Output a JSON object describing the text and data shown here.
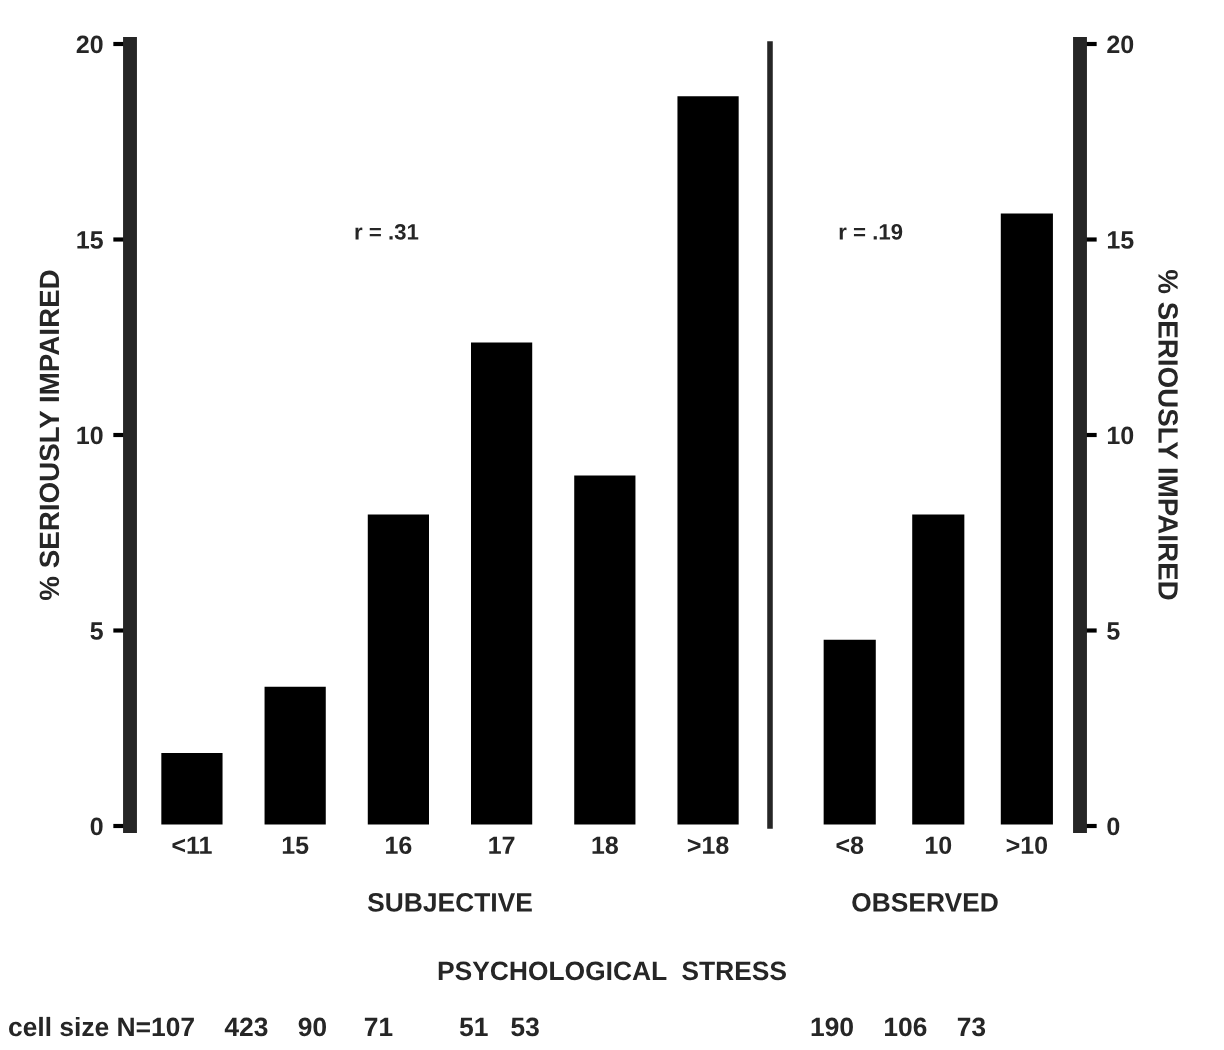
{
  "chart_data": [
    {
      "type": "bar",
      "categories": [
        "<11",
        "15",
        "16",
        "17",
        "18",
        ">18"
      ],
      "values": [
        1.9,
        3.6,
        8.0,
        12.4,
        9.0,
        18.7
      ],
      "color": "#000000",
      "xlabel": "SUBJECTIVE",
      "ylabel": "% SERIOUSLY IMPAIRED",
      "ylim": [
        0,
        20
      ],
      "yticks": [
        0,
        5,
        10,
        15,
        20
      ],
      "grid": false,
      "annotations": [
        "r = .31",
        "PSYCHOLOGICAL  STRESS",
        "cell size N=107    423    90     71         51   53"
      ]
    },
    {
      "type": "bar",
      "categories": [
        "<8",
        "10",
        ">10"
      ],
      "series": [
        {
          "values": [
            4.8,
            8.0,
            15.7
          ],
          "color": "#000000",
          "axis": "y2"
        }
      ],
      "xlabel": "OBSERVED",
      "y2label": "% SERIOUSLY IMPAIRED",
      "y2lim": [
        0,
        20
      ],
      "y2ticks": [
        0,
        5,
        10,
        15,
        20
      ],
      "grid": false,
      "annotations": [
        "r = .19",
        "190    106    73"
      ]
    }
  ]
}
